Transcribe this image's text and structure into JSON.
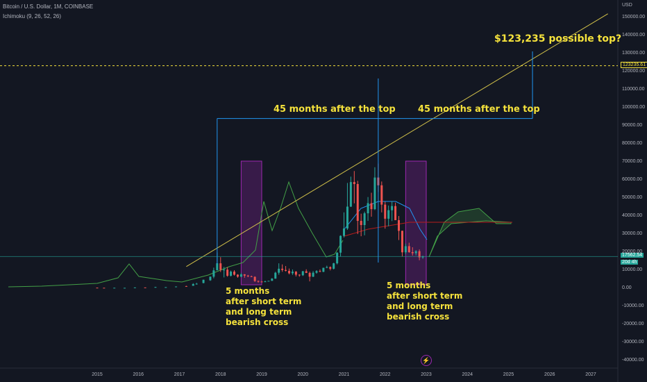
{
  "header": {
    "symbol": "Bitcoin / U.S. Dollar, 1M, COINBASE",
    "indicator": "Ichimoku (9, 26, 52, 26)"
  },
  "price_axis": {
    "currency": "USD",
    "labels": [
      "150000.00",
      "140000.00",
      "130000.00",
      "120000.00",
      "110000.00",
      "100000.00",
      "90000.00",
      "80000.00",
      "70000.00",
      "60000.00",
      "50000.00",
      "40000.00",
      "30000.00",
      "20000.00",
      "10000.00",
      "0.00",
      "-10000.00",
      "-20000.00",
      "-30000.00",
      "-40000.00"
    ],
    "current_price": "17562.54",
    "countdown": "20d 4h",
    "target_price": "123235.61"
  },
  "time_axis": {
    "labels": [
      "2015",
      "2016",
      "2017",
      "2018",
      "2019",
      "2020",
      "2021",
      "2022",
      "2023",
      "2024",
      "2025",
      "2026",
      "2027"
    ]
  },
  "annotations": {
    "top_callout": "$123,235 possible top?",
    "span_left": "45 months after the top",
    "span_right": "45 months after the top",
    "cross_note_left": "5 months\nafter short term\nand long term\nbearish cross",
    "cross_note_right": "5 months\nafter short term\nand long term\nbearish cross"
  },
  "colors": {
    "background": "#131722",
    "up_candle": "#26a69a",
    "down_candle": "#ef5350",
    "annotation_text": "#f5e23c",
    "trendline": "#d4c34a",
    "measure_line": "#2196f3",
    "highlight_box": "#9c27b0",
    "current_price": "#26a69a",
    "lagging_span": "#43a047",
    "conversion_line": "#2196f3",
    "base_line": "#b71c1c"
  },
  "icons": {
    "timeline_event": "lightning-icon"
  },
  "chart_data": {
    "type": "candlestick",
    "title": "Bitcoin / U.S. Dollar, 1M, COINBASE",
    "y_unit": "USD",
    "ylim": [
      -40000,
      150000
    ],
    "grid": false,
    "annotations": [
      {
        "type": "horizontal_line",
        "y": 123235.61,
        "label": "$123,235 possible top?"
      },
      {
        "type": "trendline",
        "from": [
          "2017-03",
          12000
        ],
        "to": [
          "2027-06",
          152000
        ]
      },
      {
        "type": "measure",
        "from": "2017-12",
        "to": "2021-11",
        "label": "45 months after the top",
        "y": 94000
      },
      {
        "type": "measure",
        "from": "2021-11",
        "to": "2025-08",
        "label": "45 months after the top",
        "y": 94000
      },
      {
        "type": "highlight",
        "from": "2018-07",
        "to": "2019-01",
        "label": "5 months after short term and long term bearish cross"
      },
      {
        "type": "highlight",
        "from": "2022-07",
        "to": "2023-01",
        "label": "5 months after short term and long term bearish cross"
      }
    ],
    "candles": [
      [
        "2015-01",
        320,
        217,
        320,
        152
      ],
      [
        "2015-03",
        254,
        250,
        300,
        230
      ],
      [
        "2015-06",
        225,
        264,
        265,
        220
      ],
      [
        "2015-09",
        230,
        237,
        255,
        220
      ],
      [
        "2015-12",
        378,
        430,
        465,
        350
      ],
      [
        "2016-03",
        437,
        416,
        440,
        400
      ],
      [
        "2016-06",
        532,
        673,
        780,
        520
      ],
      [
        "2016-09",
        573,
        609,
        625,
        570
      ],
      [
        "2016-12",
        742,
        963,
        980,
        740
      ],
      [
        "2017-03",
        1190,
        1080,
        1350,
        890
      ],
      [
        "2017-05",
        1350,
        2300,
        2800,
        1350
      ],
      [
        "2017-06",
        2300,
        2500,
        3000,
        2000
      ],
      [
        "2017-08",
        2900,
        4700,
        4800,
        2700
      ],
      [
        "2017-10",
        4400,
        6400,
        6500,
        4100
      ],
      [
        "2017-11",
        6400,
        9900,
        11400,
        5500
      ],
      [
        "2017-12",
        9900,
        13800,
        19800,
        10800
      ],
      [
        "2018-01",
        13800,
        10200,
        17200,
        9000
      ],
      [
        "2018-02",
        10200,
        10300,
        11800,
        6000
      ],
      [
        "2018-03",
        10300,
        6900,
        11700,
        6400
      ],
      [
        "2018-04",
        6900,
        9200,
        9800,
        6500
      ],
      [
        "2018-05",
        9200,
        7500,
        10000,
        7000
      ],
      [
        "2018-06",
        7500,
        6400,
        7800,
        5800
      ],
      [
        "2018-07",
        6400,
        7700,
        8500,
        6100
      ],
      [
        "2018-08",
        7700,
        7000,
        7800,
        5800
      ],
      [
        "2018-09",
        7000,
        6600,
        7400,
        6100
      ],
      [
        "2018-10",
        6600,
        6300,
        7000,
        6200
      ],
      [
        "2018-11",
        6300,
        4000,
        6600,
        3500
      ],
      [
        "2018-12",
        4000,
        3700,
        4300,
        3100
      ],
      [
        "2019-01",
        3700,
        3400,
        4100,
        3300
      ],
      [
        "2019-02",
        3400,
        3800,
        4200,
        3400
      ],
      [
        "2019-03",
        3800,
        4100,
        4100,
        3800
      ],
      [
        "2019-04",
        4100,
        5300,
        5600,
        4100
      ],
      [
        "2019-05",
        5300,
        8600,
        9100,
        5300
      ],
      [
        "2019-06",
        8600,
        10800,
        13800,
        7500
      ],
      [
        "2019-07",
        10800,
        10100,
        13200,
        9100
      ],
      [
        "2019-08",
        10100,
        9600,
        12300,
        9300
      ],
      [
        "2019-09",
        9600,
        8300,
        10900,
        7700
      ],
      [
        "2019-10",
        8300,
        9200,
        10400,
        7400
      ],
      [
        "2019-11",
        9200,
        7500,
        9500,
        6500
      ],
      [
        "2019-12",
        7500,
        7200,
        7700,
        6400
      ],
      [
        "2020-01",
        7200,
        9400,
        9600,
        6800
      ],
      [
        "2020-02",
        9400,
        8500,
        10500,
        8400
      ],
      [
        "2020-03",
        8500,
        6400,
        9200,
        3800
      ],
      [
        "2020-04",
        6400,
        8600,
        9500,
        6200
      ],
      [
        "2020-05",
        8600,
        9500,
        10000,
        8100
      ],
      [
        "2020-06",
        9500,
        9100,
        10400,
        8900
      ],
      [
        "2020-07",
        9100,
        11300,
        11400,
        8900
      ],
      [
        "2020-08",
        11300,
        11700,
        12500,
        11100
      ],
      [
        "2020-09",
        11700,
        10800,
        12100,
        9900
      ],
      [
        "2020-10",
        10800,
        13800,
        14100,
        10400
      ],
      [
        "2020-11",
        13800,
        19700,
        19900,
        13200
      ],
      [
        "2020-12",
        19700,
        29000,
        29300,
        17600
      ],
      [
        "2021-01",
        29000,
        33100,
        42000,
        28100
      ],
      [
        "2021-02",
        33100,
        45200,
        58300,
        32300
      ],
      [
        "2021-03",
        45200,
        58800,
        61800,
        45000
      ],
      [
        "2021-04",
        58800,
        57700,
        64900,
        47000
      ],
      [
        "2021-05",
        57700,
        37300,
        59500,
        30000
      ],
      [
        "2021-06",
        37300,
        35000,
        41300,
        28800
      ],
      [
        "2021-07",
        35000,
        41500,
        42400,
        29300
      ],
      [
        "2021-08",
        41500,
        47100,
        50500,
        37300
      ],
      [
        "2021-09",
        47100,
        43800,
        52900,
        39600
      ],
      [
        "2021-10",
        43800,
        61300,
        67000,
        43300
      ],
      [
        "2021-11",
        61300,
        57000,
        69000,
        53300
      ],
      [
        "2021-12",
        57000,
        46300,
        59100,
        42000
      ],
      [
        "2022-01",
        46300,
        38500,
        47900,
        33000
      ],
      [
        "2022-02",
        38500,
        43200,
        45800,
        34300
      ],
      [
        "2022-03",
        43200,
        45500,
        48200,
        37200
      ],
      [
        "2022-04",
        45500,
        37700,
        47400,
        37700
      ],
      [
        "2022-05",
        37700,
        31800,
        40000,
        26700
      ],
      [
        "2022-06",
        31800,
        19900,
        31900,
        17600
      ],
      [
        "2022-07",
        19900,
        23300,
        24700,
        18800
      ],
      [
        "2022-08",
        23300,
        20000,
        25200,
        19600
      ],
      [
        "2022-09",
        20000,
        19400,
        22700,
        18100
      ],
      [
        "2022-10",
        19400,
        20500,
        21100,
        18200
      ],
      [
        "2022-11",
        20500,
        17100,
        21500,
        15500
      ],
      [
        "2022-12",
        17100,
        17600,
        18000,
        16300
      ]
    ]
  }
}
